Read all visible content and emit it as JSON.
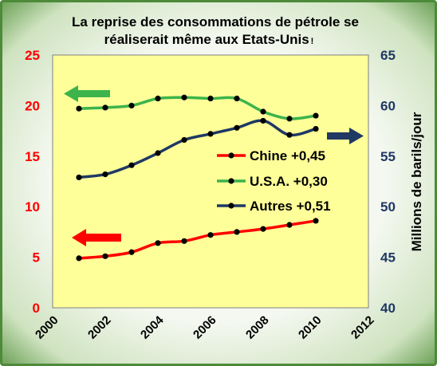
{
  "chart_data": {
    "type": "line",
    "title_line1": "La reprise des consommations de pétrole se",
    "title_line2": "réaliserait même aux Etats-Unis",
    "title_suffix": "!",
    "ylabel_right": "Millions de barils/jour",
    "xlim": [
      2000,
      2012
    ],
    "x_ticks": [
      "2000",
      "2002",
      "2004",
      "2006",
      "2008",
      "2010",
      "2012"
    ],
    "ylim_left": [
      0,
      25
    ],
    "y_ticks_left": [
      "0",
      "5",
      "10",
      "15",
      "20",
      "25"
    ],
    "ylim_right": [
      40,
      65
    ],
    "y_ticks_right": [
      "40",
      "45",
      "50",
      "55",
      "60",
      "65"
    ],
    "grid": false,
    "legend_position": "center-right",
    "x": [
      2001,
      2002,
      2003,
      2004,
      2005,
      2006,
      2007,
      2008,
      2009,
      2010
    ],
    "series": [
      {
        "name": "Chine +0,45",
        "axis": "left",
        "color": "#ff0000",
        "values": [
          4.9,
          5.1,
          5.5,
          6.4,
          6.6,
          7.2,
          7.5,
          7.8,
          8.2,
          8.6
        ]
      },
      {
        "name": "U.S.A. +0,30",
        "axis": "left",
        "color": "#3cb44b",
        "values": [
          19.7,
          19.8,
          20.0,
          20.7,
          20.8,
          20.7,
          20.7,
          19.4,
          18.7,
          19.0
        ]
      },
      {
        "name": "Autres +0,51",
        "axis": "right",
        "color": "#1f3864",
        "values": [
          52.9,
          53.2,
          54.1,
          55.3,
          56.6,
          57.2,
          57.8,
          58.5,
          57.1,
          57.7
        ]
      }
    ]
  },
  "colors": {
    "plot_background": "#ffff99",
    "left_axis": "#ff0000",
    "right_axis": "#1f3864",
    "frame_border": "#4d8a3a"
  },
  "annotations": {
    "arrow_green_left": "arrow-left",
    "arrow_red_left": "arrow-left",
    "arrow_navy_right": "arrow-right"
  }
}
